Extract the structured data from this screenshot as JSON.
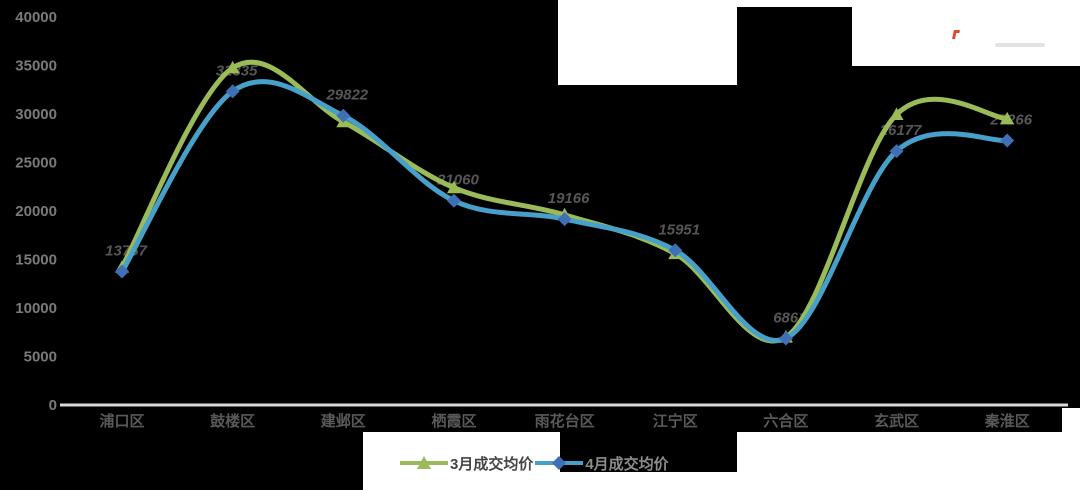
{
  "chart_data": {
    "type": "line",
    "categories": [
      "浦口区",
      "鼓楼区",
      "建邺区",
      "栖霞区",
      "雨花台区",
      "江宁区",
      "六合区",
      "玄武区",
      "秦淮区"
    ],
    "series": [
      {
        "name": "3月成交均价",
        "color": "#9bbb59",
        "marker": "triangle",
        "values": [
          14200,
          34750,
          29200,
          22400,
          19600,
          15600,
          7000,
          29950,
          29500
        ],
        "show_labels": false
      },
      {
        "name": "4月成交均价",
        "color": "#47a0c9",
        "marker_color": "#3f6fb5",
        "marker": "diamond",
        "values": [
          13757,
          32335,
          29822,
          21060,
          19166,
          15951,
          6861,
          26177,
          27266
        ],
        "show_labels": true,
        "labels": [
          "13757",
          "32335",
          "29822",
          "21060",
          "19166",
          "15951",
          "6861",
          "26177",
          "27266"
        ]
      }
    ],
    "ylim": [
      0,
      40000
    ],
    "ytick_step": 5000,
    "yticks": [
      "0",
      "5000",
      "10000",
      "15000",
      "20000",
      "25000",
      "30000",
      "35000",
      "40000"
    ],
    "grid": false,
    "legend_position": "bottom"
  },
  "legend": {
    "items": [
      {
        "label": "3月成交均价",
        "text_color": "#454545"
      },
      {
        "label": "4月成交均价",
        "text_color": "#8c8c8c"
      }
    ]
  },
  "colors": {
    "background": "#000000",
    "patch": "#ffffff",
    "axis_line": "#d9d9d9",
    "ytick_text": "#7a7a7a",
    "xlabel_text": "#595959",
    "data_label_text": "#565656",
    "artifact_mark": "#e0492e"
  }
}
